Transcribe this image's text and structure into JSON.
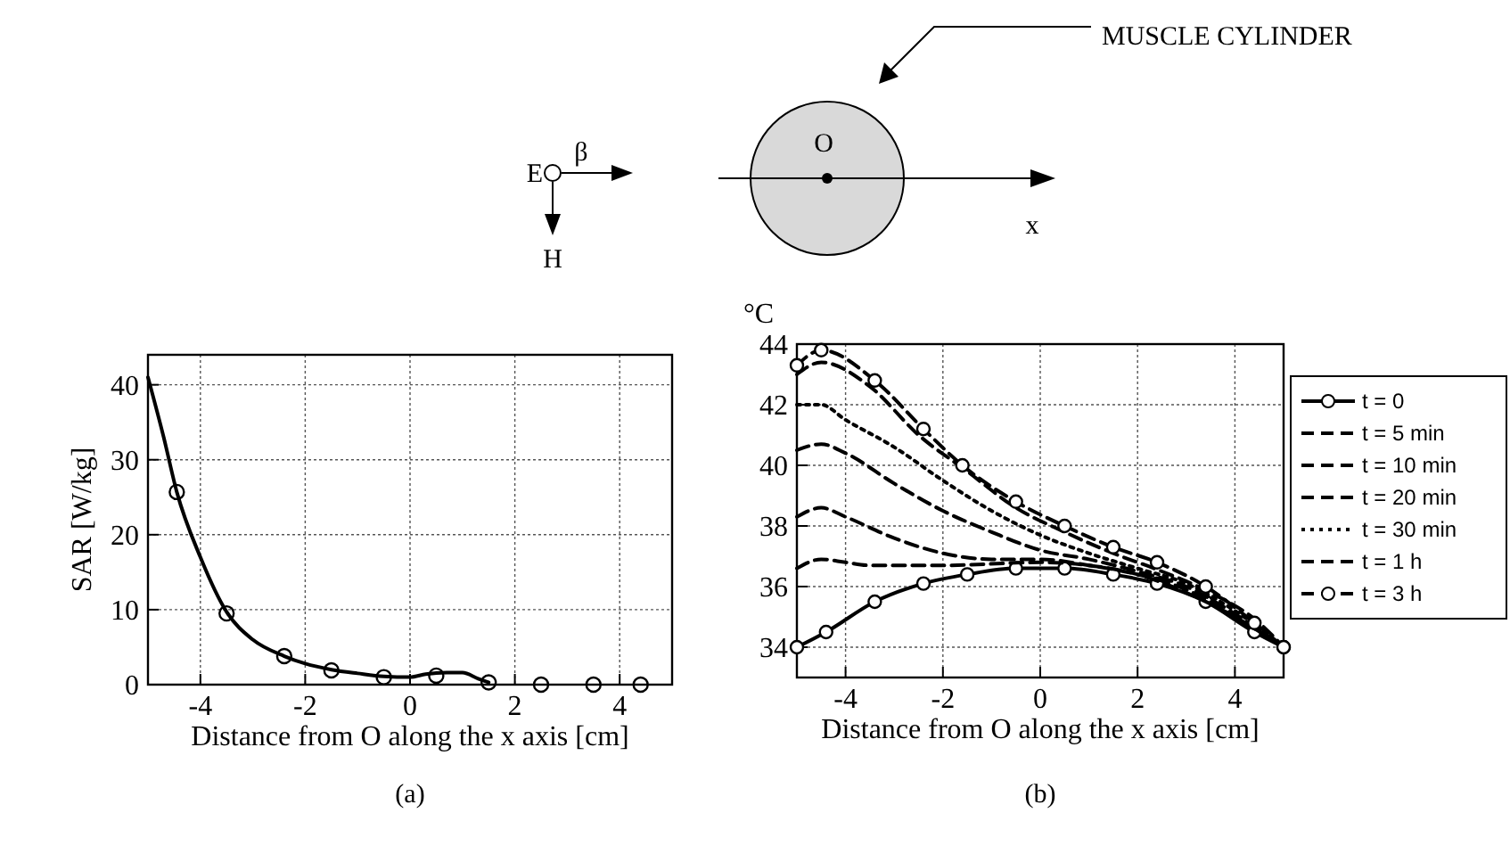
{
  "chart_data": [
    {
      "type": "other",
      "annotations": [
        "MUSCLE CYLINDER",
        "E",
        "H",
        "β",
        "O",
        "x"
      ]
    },
    {
      "type": "line",
      "xlabel": "Distance from O along the x axis [cm]",
      "ylabel": "SAR [W/kg]",
      "xlim": [
        -5,
        5
      ],
      "xticks": [
        -4,
        -2,
        0,
        2,
        4
      ],
      "ylim": [
        0,
        44
      ],
      "yticks": [
        0,
        10,
        20,
        30,
        40
      ],
      "grid": true,
      "annotations": [
        "(a)"
      ],
      "series": [
        {
          "type": "line",
          "color": "#000000",
          "line_style": "solid",
          "marker": "none",
          "x": [
            -5,
            -4.7,
            -4.45,
            -4,
            -3.5,
            -3,
            -2.4,
            -2,
            -1.5,
            -1,
            -0.5,
            0,
            0.3,
            0.7,
            1,
            1.3,
            1.5
          ],
          "values": [
            41,
            33,
            25.7,
            17,
            9.7,
            6,
            3.8,
            2.8,
            2,
            1.5,
            1.1,
            1,
            1.4,
            1.6,
            1.6,
            0.8,
            0.3
          ]
        },
        {
          "type": "scatter",
          "color": "#000000",
          "marker": "circle",
          "x": [
            -4.45,
            -3.5,
            -2.4,
            -1.5,
            -0.5,
            0.5,
            1.5,
            2.5,
            3.5,
            4.4
          ],
          "values": [
            25.7,
            9.5,
            3.8,
            1.9,
            1,
            1.2,
            0.3,
            0,
            0,
            0
          ]
        }
      ]
    },
    {
      "type": "line",
      "xlabel": "Distance from O along the x axis [cm]",
      "ylabel": "°C",
      "xlim": [
        -5,
        5
      ],
      "xticks": [
        -4,
        -2,
        0,
        2,
        4
      ],
      "ylim": [
        33,
        44
      ],
      "yticks": [
        34,
        36,
        38,
        40,
        42,
        44
      ],
      "grid": true,
      "legend": "right",
      "annotations": [
        "(b)"
      ],
      "series": [
        {
          "name": "t = 0",
          "color": "#000000",
          "line_style": "solid",
          "marker": "circle",
          "x": [
            -5,
            -4.4,
            -3.4,
            -2.4,
            -1.5,
            -0.5,
            0.5,
            1.5,
            2.4,
            3.4,
            4.4,
            5
          ],
          "values": [
            34,
            34.5,
            35.5,
            36.1,
            36.4,
            36.6,
            36.6,
            36.4,
            36.1,
            35.5,
            34.5,
            34
          ]
        },
        {
          "name": "t = 5 min",
          "color": "#000000",
          "line_style": "dashed",
          "marker": "none",
          "x": [
            -5,
            -4.5,
            -4,
            -3.5,
            -2,
            0,
            1,
            2,
            3,
            4,
            5
          ],
          "values": [
            36.6,
            36.9,
            36.8,
            36.7,
            36.7,
            36.8,
            36.7,
            36.4,
            35.8,
            35,
            34
          ]
        },
        {
          "name": "t = 10 min",
          "color": "#000000",
          "line_style": "dashed",
          "marker": "none",
          "x": [
            -5,
            -4.5,
            -4,
            -3,
            -2,
            -1,
            0,
            1,
            2,
            3,
            4,
            5
          ],
          "values": [
            38.3,
            38.6,
            38.3,
            37.6,
            37.1,
            36.9,
            36.9,
            36.7,
            36.4,
            35.9,
            35,
            34
          ]
        },
        {
          "name": "t = 20 min",
          "color": "#000000",
          "line_style": "dashed",
          "marker": "none",
          "x": [
            -5,
            -4.5,
            -4,
            -3,
            -2,
            -1,
            0,
            1,
            2,
            3,
            4,
            5
          ],
          "values": [
            40.5,
            40.7,
            40.4,
            39.4,
            38.5,
            37.8,
            37.2,
            36.9,
            36.5,
            36,
            35.1,
            34
          ]
        },
        {
          "name": "t = 30 min",
          "color": "#000000",
          "line_style": "dotted",
          "marker": "none",
          "x": [
            -5,
            -4.5,
            -4,
            -3,
            -2,
            -1,
            0,
            1,
            2,
            3,
            4,
            5
          ],
          "values": [
            42,
            42,
            41.5,
            40.6,
            39.5,
            38.5,
            37.7,
            37.1,
            36.6,
            36.1,
            35.2,
            34
          ]
        },
        {
          "name": "t = 1 h",
          "color": "#000000",
          "line_style": "dashed",
          "marker": "none",
          "x": [
            -5,
            -4.5,
            -3.5,
            -2.5,
            -1.5,
            -0.5,
            0.5,
            1.5,
            2.5,
            3.5,
            4.5,
            5
          ],
          "values": [
            43,
            43.4,
            42.6,
            41,
            39.8,
            38.6,
            37.8,
            37.1,
            36.5,
            35.8,
            34.8,
            34
          ]
        },
        {
          "name": "t = 3 h",
          "color": "#000000",
          "line_style": "dashed",
          "marker": "circle",
          "x": [
            -5,
            -4.5,
            -3.4,
            -2.4,
            -1.6,
            -0.5,
            0.5,
            1.5,
            2.4,
            3.4,
            4.4,
            5
          ],
          "values": [
            43.3,
            43.8,
            42.8,
            41.2,
            40,
            38.8,
            38,
            37.3,
            36.8,
            36,
            34.8,
            34
          ]
        }
      ]
    }
  ]
}
